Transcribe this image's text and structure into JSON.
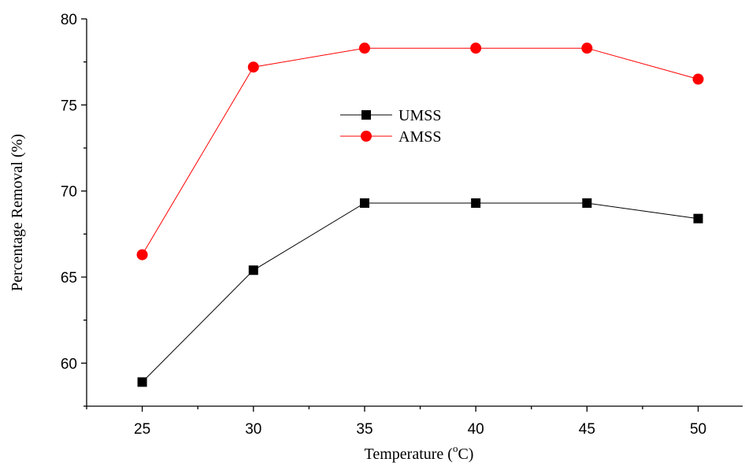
{
  "chart_data": {
    "type": "line",
    "title": "",
    "xlabel": "Temperature (",
    "xlabel_sup": "o",
    "xlabel_unit": "C)",
    "ylabel": "Percentage Removal (%)",
    "x": [
      25,
      30,
      35,
      40,
      45,
      50
    ],
    "xlim": [
      22.5,
      52
    ],
    "ylim": [
      57.5,
      80
    ],
    "xticks": [
      "25",
      "30",
      "35",
      "40",
      "45",
      "50"
    ],
    "yticks": [
      "60",
      "65",
      "70",
      "75",
      "80"
    ],
    "grid": false,
    "legend_position": "center",
    "series": [
      {
        "name": "UMSS",
        "values": [
          58.9,
          65.4,
          69.3,
          69.3,
          69.3,
          68.4
        ],
        "color": "#000000",
        "marker": "square"
      },
      {
        "name": "AMSS",
        "values": [
          66.3,
          77.2,
          78.3,
          78.3,
          78.3,
          76.5
        ],
        "color": "#ff0000",
        "marker": "circle"
      }
    ]
  }
}
